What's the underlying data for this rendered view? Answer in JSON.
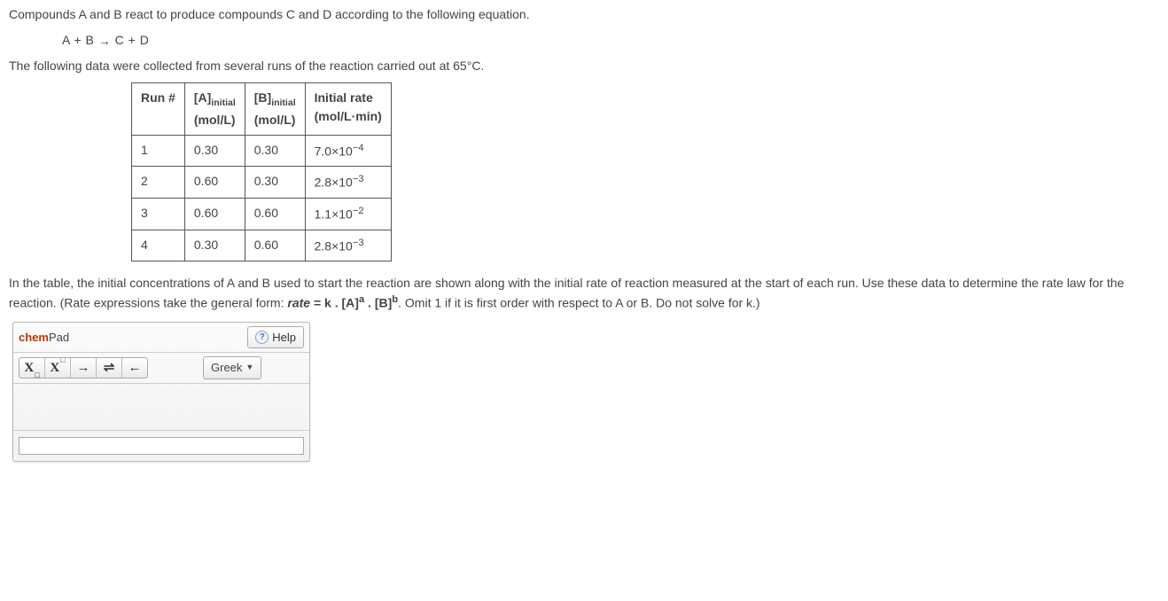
{
  "problem": {
    "intro": "Compounds A and B react to produce compounds C and D according to the following equation.",
    "equation_lhs": "A + B",
    "equation_rhs": "C + D",
    "context": "The following data were collected from several runs of the reaction carried out at 65°C."
  },
  "table": {
    "headers": {
      "run": "Run #",
      "A_sub": "initial",
      "A_unit": "(mol/L)",
      "B_sub": "initial",
      "B_unit": "(mol/L)",
      "rate_label": "Initial rate",
      "rate_unit": "(mol/L·min)"
    },
    "rows": [
      {
        "run": "1",
        "A": "0.30",
        "B": "0.30",
        "rate_coef": "7.0",
        "rate_exp": "−4"
      },
      {
        "run": "2",
        "A": "0.60",
        "B": "0.30",
        "rate_coef": "2.8",
        "rate_exp": "−3"
      },
      {
        "run": "3",
        "A": "0.60",
        "B": "0.60",
        "rate_coef": "1.1",
        "rate_exp": "−2"
      },
      {
        "run": "4",
        "A": "0.30",
        "B": "0.60",
        "rate_coef": "2.8",
        "rate_exp": "−3"
      }
    ]
  },
  "prompt": {
    "p1": "In the table, the initial concentrations of A and B used to start the reaction are shown along with the initial rate of reaction measured at the start of each run. Use these data to determine the rate law for the reaction. (Rate expressions take the general form: ",
    "rate_eq": "rate",
    "eq_mid": " = k . [A]",
    "exp_a": "a",
    "dot": " . [B]",
    "exp_b": "b",
    "p2": ". Omit 1 if it is first order with respect to A or B. Do not solve for k.)"
  },
  "chempad": {
    "title_chem": "chem",
    "title_pad": "Pad",
    "help": "Help",
    "greek": "Greek",
    "input_value": ""
  }
}
